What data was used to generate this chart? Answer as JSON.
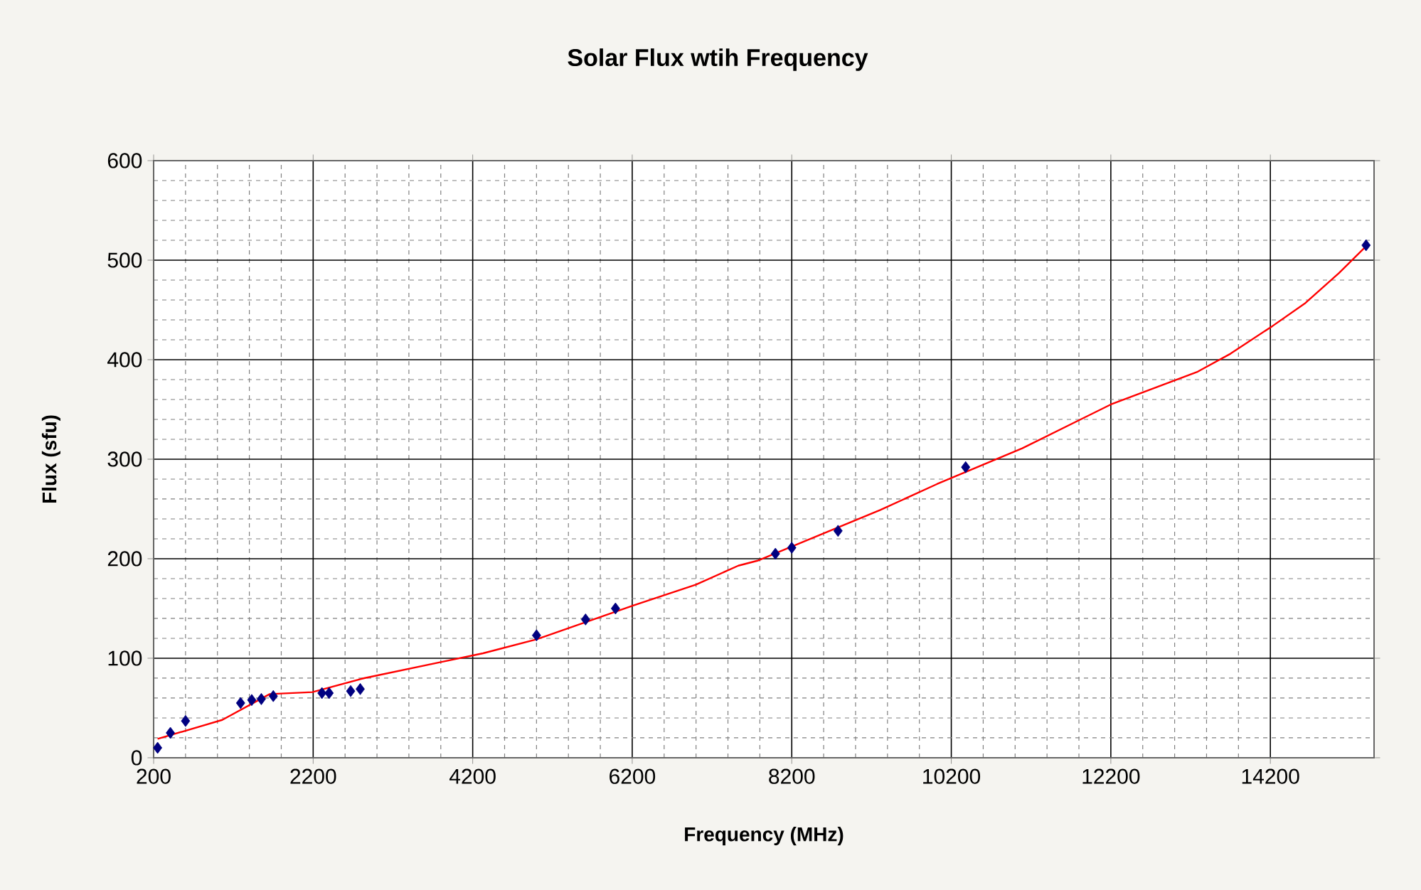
{
  "chart_data": {
    "type": "scatter",
    "title": "Solar Flux wtih Frequency",
    "xlabel": "Frequency (MHz)",
    "ylabel": "Flux (sfu)",
    "xlim": [
      200,
      15500
    ],
    "ylim": [
      0,
      600
    ],
    "xticks": [
      200,
      2200,
      4200,
      6200,
      8200,
      10200,
      12200,
      14200
    ],
    "yticks": [
      0,
      100,
      200,
      300,
      400,
      500,
      600
    ],
    "grid": true,
    "series": [
      {
        "marker": "diamond",
        "color": "#000080",
        "x": [
          250,
          410,
          600,
          1290,
          1430,
          1550,
          1700,
          2310,
          2400,
          2670,
          2790,
          5000,
          5615,
          5990,
          7995,
          8200,
          8780,
          10380,
          15400
        ],
        "values": [
          10,
          25,
          37,
          55,
          58,
          59,
          62,
          65,
          65,
          67,
          69,
          123,
          139,
          150,
          205,
          211,
          228,
          292,
          515
        ]
      },
      {
        "type": "line",
        "marker": "none",
        "line_style": "solid",
        "color": "#ff0000",
        "x": [
          250,
          1060,
          1655,
          2190,
          2840,
          3790,
          4330,
          5000,
          6210,
          7000,
          7530,
          7770,
          9310,
          10020,
          11090,
          12200,
          13290,
          13700,
          14230,
          14640,
          15060,
          15400
        ],
        "values": [
          19,
          38,
          64,
          66,
          80,
          96,
          105,
          119,
          153,
          174,
          193,
          198,
          249,
          275,
          311,
          355,
          388,
          406,
          434,
          457,
          487,
          514
        ]
      }
    ]
  }
}
